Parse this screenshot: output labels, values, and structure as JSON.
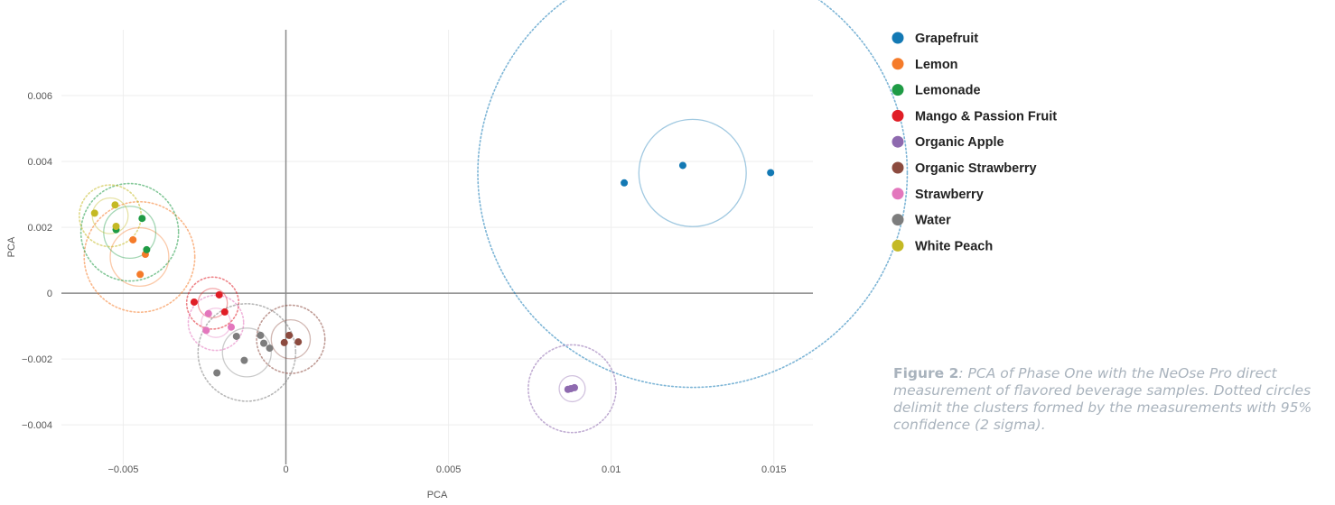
{
  "chart_data": {
    "type": "scatter",
    "xlabel": "PCA",
    "ylabel": "PCA",
    "xlim": [
      -0.0069,
      0.0162
    ],
    "ylim": [
      -0.0052,
      0.008
    ],
    "x_ticks": [
      -0.005,
      0,
      0.005,
      0.01,
      0.015
    ],
    "x_tick_labels": [
      "−0.005",
      "0",
      "0.005",
      "0.01",
      "0.015"
    ],
    "y_ticks": [
      -0.004,
      -0.002,
      0,
      0.002,
      0.004,
      0.006
    ],
    "y_tick_labels": [
      "−0.004",
      "−0.002",
      "0",
      "0.002",
      "0.004",
      "0.006"
    ],
    "grid": true,
    "legend_position": "right",
    "series": [
      {
        "name": "Grapefruit",
        "color": "#1379b4",
        "points": [
          [
            0.0104,
            0.00335
          ],
          [
            0.0122,
            0.00388
          ],
          [
            0.0149,
            0.00366
          ]
        ],
        "center": [
          0.0125,
          0.00365
        ],
        "r_inner": 0.00165,
        "r_outer": 0.0066
      },
      {
        "name": "Lemon",
        "color": "#f57b2a",
        "points": [
          [
            -0.0047,
            0.00162
          ],
          [
            -0.00432,
            0.00118
          ],
          [
            -0.00448,
            0.00057
          ]
        ],
        "center": [
          -0.0045,
          0.0011
        ],
        "r_inner": 0.0009,
        "r_outer": 0.0017
      },
      {
        "name": "Lemonade",
        "color": "#1f9b45",
        "points": [
          [
            -0.00522,
            0.00193
          ],
          [
            -0.00442,
            0.00227
          ],
          [
            -0.00428,
            0.00132
          ]
        ],
        "center": [
          -0.0048,
          0.00185
        ],
        "r_inner": 0.0008,
        "r_outer": 0.0015
      },
      {
        "name": "Mango & Passion Fruit",
        "color": "#e01e26",
        "points": [
          [
            -0.00282,
            -0.00027
          ],
          [
            -0.00205,
            -5e-05
          ],
          [
            -0.00188,
            -0.00057
          ]
        ],
        "center": [
          -0.00225,
          -0.0003
        ],
        "r_inner": 0.00045,
        "r_outer": 0.0008
      },
      {
        "name": "Organic Apple",
        "color": "#8e6aaf",
        "points": [
          [
            0.00867,
            -0.00292
          ],
          [
            0.00876,
            -0.0029
          ],
          [
            0.00887,
            -0.00287
          ]
        ],
        "center": [
          0.0088,
          -0.0029
        ],
        "r_inner": 0.0004,
        "r_outer": 0.00135
      },
      {
        "name": "Organic Strawberry",
        "color": "#8c4b3f",
        "points": [
          [
            -5e-05,
            -0.0015
          ],
          [
            0.0001,
            -0.00128
          ],
          [
            0.00038,
            -0.00148
          ]
        ],
        "center": [
          0.00015,
          -0.0014
        ],
        "r_inner": 0.0006,
        "r_outer": 0.00105
      },
      {
        "name": "Strawberry",
        "color": "#e377bd",
        "points": [
          [
            -0.00238,
            -0.00062
          ],
          [
            -0.00245,
            -0.00113
          ],
          [
            -0.00168,
            -0.00103
          ]
        ],
        "center": [
          -0.00215,
          -0.0009
        ],
        "r_inner": 0.00045,
        "r_outer": 0.00085
      },
      {
        "name": "Water",
        "color": "#7d7d7d",
        "points": [
          [
            -0.00152,
            -0.00131
          ],
          [
            -0.00078,
            -0.00128
          ],
          [
            -0.00068,
            -0.00152
          ],
          [
            -0.0005,
            -0.00167
          ],
          [
            -0.00128,
            -0.00204
          ],
          [
            -0.00212,
            -0.00242
          ]
        ],
        "center": [
          -0.0012,
          -0.0018
        ],
        "r_inner": 0.00075,
        "r_outer": 0.0015
      },
      {
        "name": "White Peach",
        "color": "#c4b924",
        "points": [
          [
            -0.00588,
            0.00243
          ],
          [
            -0.00525,
            0.00268
          ],
          [
            -0.00522,
            0.00203
          ]
        ],
        "center": [
          -0.0054,
          0.00235
        ],
        "r_inner": 0.00055,
        "r_outer": 0.00095
      }
    ]
  },
  "caption": {
    "figure_label": "Figure 2",
    "text": ": PCA of Phase One with the NeOse Pro direct measurement of flavored beverage samples. Dotted circles delimit the clusters formed by the measurements with 95% confidence (2 sigma)."
  }
}
